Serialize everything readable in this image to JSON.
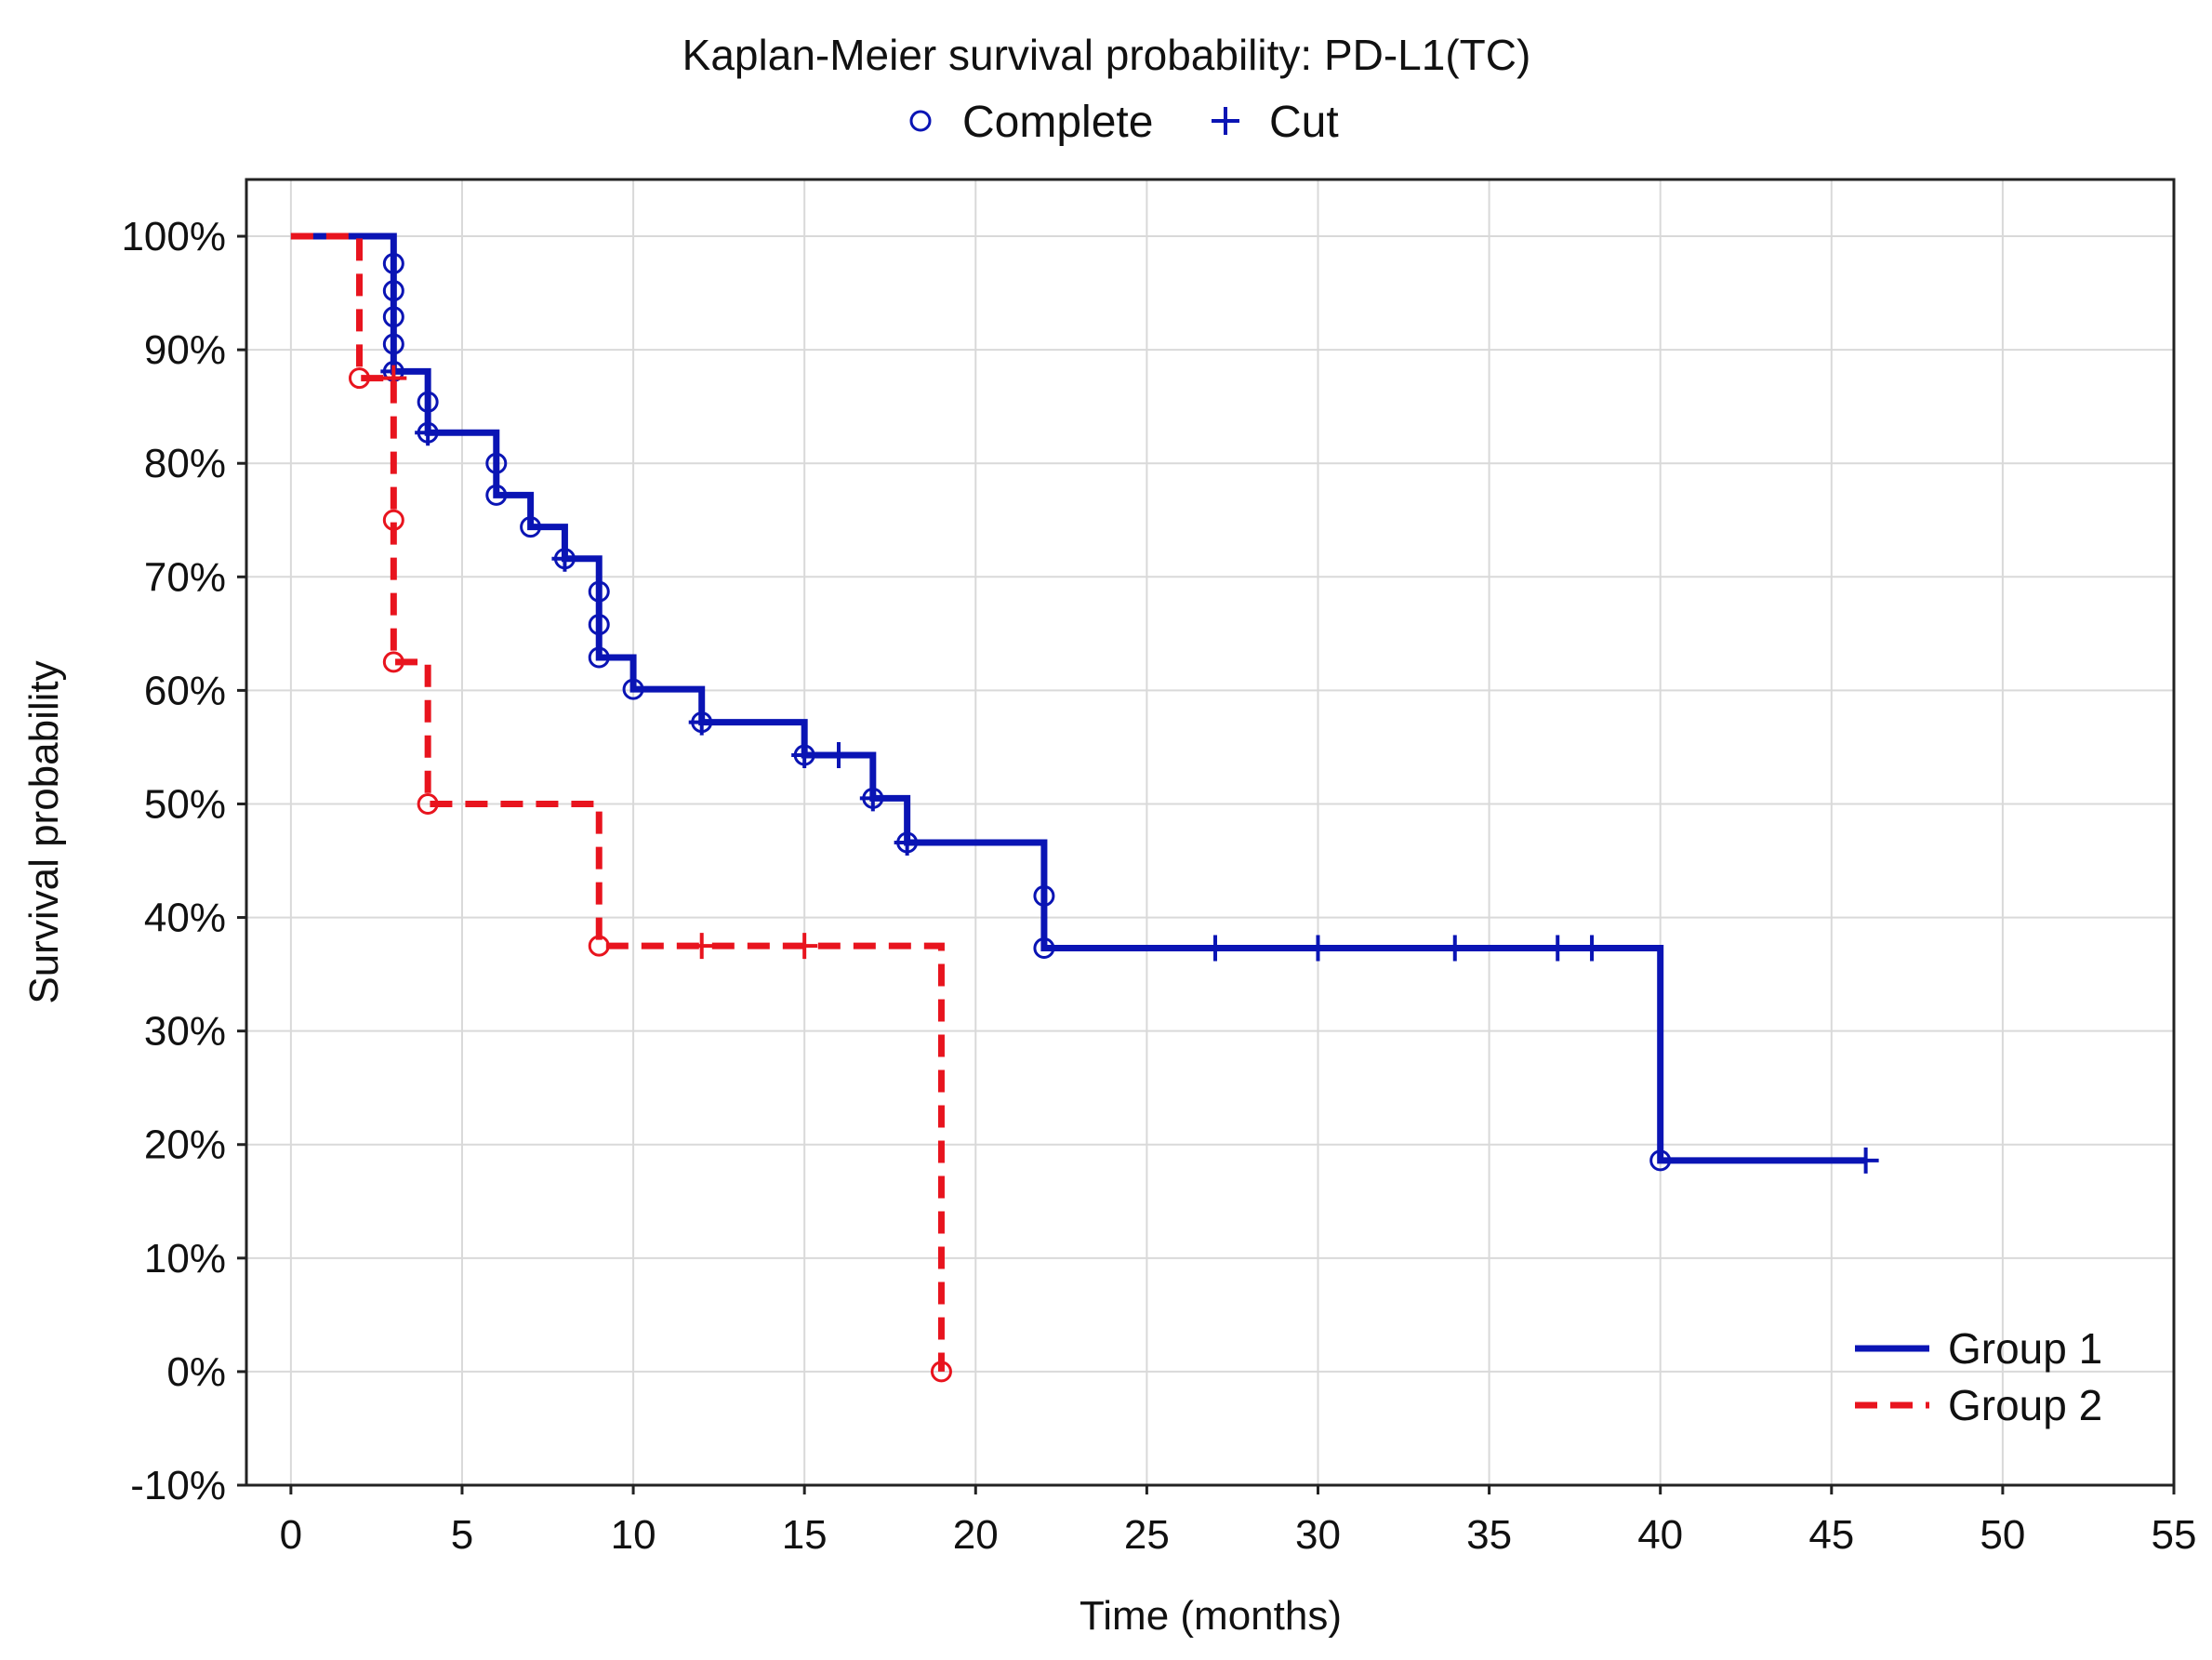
{
  "chart_data": {
    "type": "line",
    "subtype": "kaplan-meier step",
    "title": "Kaplan-Meier survival probability: PD-L1(TC)",
    "marker_legend": [
      {
        "symbol": "circle",
        "label": "Complete"
      },
      {
        "symbol": "plus",
        "label": "Cut"
      }
    ],
    "xlabel": "Time (months)",
    "ylabel": "Survival probability",
    "xlim": [
      -1.3,
      55
    ],
    "ylim": [
      -10,
      105
    ],
    "x_ticks": [
      0,
      5,
      10,
      15,
      20,
      25,
      30,
      35,
      40,
      45,
      50,
      55
    ],
    "y_ticks": [
      -10,
      0,
      10,
      20,
      30,
      40,
      50,
      60,
      70,
      80,
      90,
      100
    ],
    "y_tick_labels": [
      "-10%",
      "0%",
      "10%",
      "20%",
      "30%",
      "40%",
      "50%",
      "60%",
      "70%",
      "80%",
      "90%",
      "100%"
    ],
    "grid": true,
    "legend_position": "bottom-right",
    "series": [
      {
        "name": "Group 1",
        "color": "#0a14b4",
        "dash": "solid",
        "steps": [
          [
            0,
            100
          ],
          [
            3,
            88.1
          ],
          [
            4,
            82.7
          ],
          [
            6,
            77.2
          ],
          [
            7,
            74.4
          ],
          [
            8,
            71.6
          ],
          [
            9,
            62.9
          ],
          [
            10,
            60.1
          ],
          [
            12,
            57.2
          ],
          [
            15,
            54.3
          ],
          [
            17,
            50.5
          ],
          [
            18,
            46.6
          ],
          [
            22,
            37.3
          ],
          [
            40,
            18.6
          ]
        ],
        "end_time": 46,
        "complete": [
          [
            3,
            97.6
          ],
          [
            3,
            95.2
          ],
          [
            3,
            92.9
          ],
          [
            3,
            90.5
          ],
          [
            3,
            88.1
          ],
          [
            4,
            85.4
          ],
          [
            4,
            82.7
          ],
          [
            6,
            80.0
          ],
          [
            6,
            77.2
          ],
          [
            7,
            74.4
          ],
          [
            8,
            71.6
          ],
          [
            9,
            68.7
          ],
          [
            9,
            65.8
          ],
          [
            9,
            62.9
          ],
          [
            10,
            60.1
          ],
          [
            12,
            57.2
          ],
          [
            15,
            54.3
          ],
          [
            17,
            50.5
          ],
          [
            18,
            46.6
          ],
          [
            22,
            41.9
          ],
          [
            22,
            37.3
          ],
          [
            40,
            18.6
          ]
        ],
        "censored": [
          [
            3,
            88.1
          ],
          [
            4,
            82.7
          ],
          [
            8,
            71.6
          ],
          [
            12,
            57.2
          ],
          [
            15,
            54.3
          ],
          [
            16,
            54.3
          ],
          [
            17,
            50.5
          ],
          [
            18,
            46.6
          ],
          [
            27,
            37.3
          ],
          [
            30,
            37.3
          ],
          [
            34,
            37.3
          ],
          [
            37,
            37.3
          ],
          [
            38,
            37.3
          ],
          [
            46,
            18.6
          ]
        ]
      },
      {
        "name": "Group 2",
        "color": "#e8141e",
        "dash": "dashed",
        "steps": [
          [
            0,
            100
          ],
          [
            2,
            87.5
          ],
          [
            3,
            62.5
          ],
          [
            4,
            50.0
          ],
          [
            9,
            37.5
          ],
          [
            19,
            0
          ]
        ],
        "end_time": 19,
        "complete": [
          [
            2,
            87.5
          ],
          [
            3,
            75.0
          ],
          [
            3,
            62.5
          ],
          [
            4,
            50.0
          ],
          [
            9,
            37.5
          ],
          [
            19,
            0
          ]
        ],
        "censored": [
          [
            3,
            87.5
          ],
          [
            12,
            37.5
          ],
          [
            15,
            37.5
          ]
        ]
      }
    ]
  }
}
